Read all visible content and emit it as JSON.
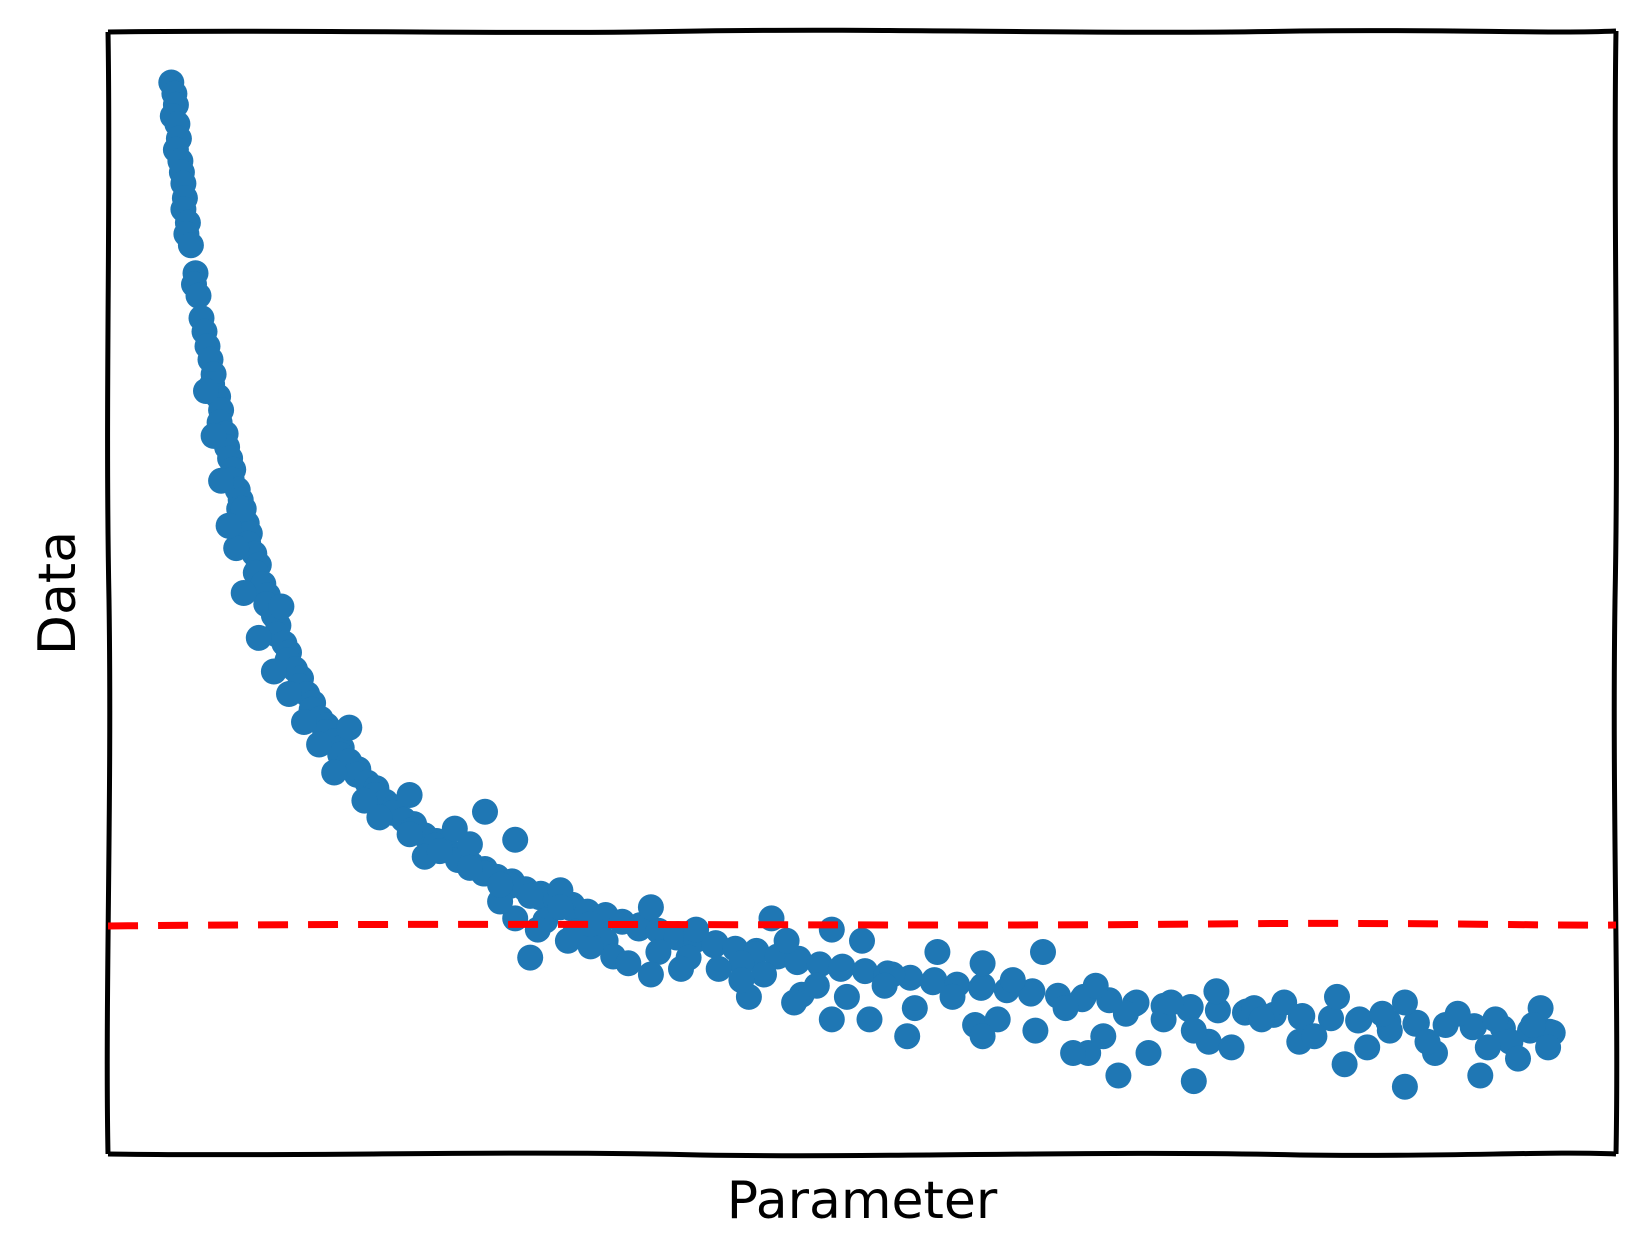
{
  "chart_data": {
    "type": "scatter",
    "title": "",
    "xlabel": "Parameter",
    "ylabel": "Data",
    "xlim": [
      0,
      1
    ],
    "ylim": [
      0,
      1
    ],
    "grid": false,
    "ticks": false,
    "legend": "none",
    "series": [
      {
        "color": "#1f77b4",
        "marker": "circle",
        "points": [
          [
            0.042,
            0.955
          ],
          [
            0.044,
            0.945
          ],
          [
            0.045,
            0.935
          ],
          [
            0.043,
            0.925
          ],
          [
            0.046,
            0.918
          ],
          [
            0.047,
            0.905
          ],
          [
            0.045,
            0.895
          ],
          [
            0.048,
            0.885
          ],
          [
            0.049,
            0.875
          ],
          [
            0.05,
            0.865
          ],
          [
            0.051,
            0.852
          ],
          [
            0.05,
            0.842
          ],
          [
            0.053,
            0.83
          ],
          [
            0.052,
            0.82
          ],
          [
            0.055,
            0.81
          ],
          [
            0.058,
            0.785
          ],
          [
            0.057,
            0.775
          ],
          [
            0.06,
            0.765
          ],
          [
            0.062,
            0.745
          ],
          [
            0.064,
            0.733
          ],
          [
            0.066,
            0.72
          ],
          [
            0.068,
            0.708
          ],
          [
            0.07,
            0.695
          ],
          [
            0.069,
            0.686
          ],
          [
            0.073,
            0.675
          ],
          [
            0.075,
            0.663
          ],
          [
            0.074,
            0.652
          ],
          [
            0.078,
            0.642
          ],
          [
            0.079,
            0.63
          ],
          [
            0.081,
            0.62
          ],
          [
            0.083,
            0.61
          ],
          [
            0.082,
            0.601
          ],
          [
            0.086,
            0.592
          ],
          [
            0.088,
            0.583
          ],
          [
            0.087,
            0.575
          ],
          [
            0.092,
            0.562
          ],
          [
            0.094,
            0.553
          ],
          [
            0.093,
            0.544
          ],
          [
            0.097,
            0.535
          ],
          [
            0.1,
            0.525
          ],
          [
            0.098,
            0.518
          ],
          [
            0.103,
            0.508
          ],
          [
            0.106,
            0.498
          ],
          [
            0.105,
            0.49
          ],
          [
            0.11,
            0.48
          ],
          [
            0.113,
            0.471
          ],
          [
            0.112,
            0.463
          ],
          [
            0.117,
            0.455
          ],
          [
            0.12,
            0.447
          ],
          [
            0.119,
            0.44
          ],
          [
            0.124,
            0.432
          ],
          [
            0.128,
            0.424
          ],
          [
            0.127,
            0.417
          ],
          [
            0.132,
            0.41
          ],
          [
            0.136,
            0.402
          ],
          [
            0.135,
            0.396
          ],
          [
            0.141,
            0.388
          ],
          [
            0.145,
            0.382
          ],
          [
            0.144,
            0.376
          ],
          [
            0.15,
            0.368
          ],
          [
            0.155,
            0.362
          ],
          [
            0.154,
            0.356
          ],
          [
            0.16,
            0.35
          ],
          [
            0.166,
            0.343
          ],
          [
            0.165,
            0.338
          ],
          [
            0.172,
            0.331
          ],
          [
            0.178,
            0.326
          ],
          [
            0.177,
            0.32
          ],
          [
            0.184,
            0.314
          ],
          [
            0.19,
            0.309
          ],
          [
            0.189,
            0.304
          ],
          [
            0.196,
            0.298
          ],
          [
            0.203,
            0.294
          ],
          [
            0.202,
            0.289
          ],
          [
            0.21,
            0.284
          ],
          [
            0.218,
            0.279
          ],
          [
            0.217,
            0.275
          ],
          [
            0.225,
            0.271
          ],
          [
            0.233,
            0.266
          ],
          [
            0.232,
            0.262
          ],
          [
            0.241,
            0.258
          ],
          [
            0.25,
            0.254
          ],
          [
            0.249,
            0.25
          ],
          [
            0.258,
            0.247
          ],
          [
            0.268,
            0.243
          ],
          [
            0.267,
            0.239
          ],
          [
            0.277,
            0.236
          ],
          [
            0.287,
            0.232
          ],
          [
            0.286,
            0.229
          ],
          [
            0.297,
            0.226
          ],
          [
            0.308,
            0.222
          ],
          [
            0.307,
            0.219
          ],
          [
            0.318,
            0.216
          ],
          [
            0.33,
            0.213
          ],
          [
            0.329,
            0.21
          ],
          [
            0.341,
            0.207
          ],
          [
            0.353,
            0.204
          ],
          [
            0.352,
            0.201
          ],
          [
            0.365,
            0.199
          ],
          [
            0.378,
            0.196
          ],
          [
            0.377,
            0.193
          ],
          [
            0.39,
            0.191
          ],
          [
            0.403,
            0.188
          ],
          [
            0.402,
            0.186
          ],
          [
            0.416,
            0.183
          ],
          [
            0.43,
            0.181
          ],
          [
            0.429,
            0.178
          ],
          [
            0.444,
            0.176
          ],
          [
            0.458,
            0.174
          ],
          [
            0.457,
            0.171
          ],
          [
            0.472,
            0.169
          ],
          [
            0.487,
            0.167
          ],
          [
            0.486,
            0.165
          ],
          [
            0.502,
            0.163
          ],
          [
            0.517,
            0.161
          ],
          [
            0.516,
            0.159
          ],
          [
            0.532,
            0.157
          ],
          [
            0.548,
            0.155
          ],
          [
            0.547,
            0.153
          ],
          [
            0.563,
            0.151
          ],
          [
            0.58,
            0.15
          ],
          [
            0.579,
            0.148
          ],
          [
            0.596,
            0.146
          ],
          [
            0.613,
            0.145
          ],
          [
            0.612,
            0.143
          ],
          [
            0.63,
            0.141
          ],
          [
            0.647,
            0.14
          ],
          [
            0.646,
            0.138
          ],
          [
            0.664,
            0.137
          ],
          [
            0.682,
            0.135
          ],
          [
            0.681,
            0.134
          ],
          [
            0.7,
            0.132
          ],
          [
            0.718,
            0.131
          ],
          [
            0.717,
            0.129
          ],
          [
            0.736,
            0.128
          ],
          [
            0.755,
            0.127
          ],
          [
            0.754,
            0.126
          ],
          [
            0.773,
            0.124
          ],
          [
            0.792,
            0.123
          ],
          [
            0.791,
            0.122
          ],
          [
            0.811,
            0.121
          ],
          [
            0.83,
            0.12
          ],
          [
            0.829,
            0.119
          ],
          [
            0.849,
            0.118
          ],
          [
            0.868,
            0.117
          ],
          [
            0.867,
            0.116
          ],
          [
            0.887,
            0.115
          ],
          [
            0.906,
            0.114
          ],
          [
            0.905,
            0.113
          ],
          [
            0.925,
            0.112
          ],
          [
            0.944,
            0.111
          ],
          [
            0.943,
            0.11
          ],
          [
            0.956,
            0.109
          ],
          [
            0.958,
            0.108
          ],
          [
            0.09,
            0.575
          ],
          [
            0.115,
            0.488
          ],
          [
            0.16,
            0.38
          ],
          [
            0.2,
            0.32
          ],
          [
            0.23,
            0.29
          ],
          [
            0.25,
            0.25
          ],
          [
            0.27,
            0.28
          ],
          [
            0.3,
            0.235
          ],
          [
            0.33,
            0.19
          ],
          [
            0.36,
            0.22
          ],
          [
            0.39,
            0.2
          ],
          [
            0.42,
            0.17
          ],
          [
            0.45,
            0.19
          ],
          [
            0.48,
            0.2
          ],
          [
            0.5,
            0.19
          ],
          [
            0.52,
            0.16
          ],
          [
            0.55,
            0.18
          ],
          [
            0.58,
            0.17
          ],
          [
            0.62,
            0.18
          ],
          [
            0.65,
            0.09
          ],
          [
            0.67,
            0.07
          ],
          [
            0.7,
            0.12
          ],
          [
            0.73,
            0.1
          ],
          [
            0.76,
            0.13
          ],
          [
            0.79,
            0.1
          ],
          [
            0.82,
            0.08
          ],
          [
            0.85,
            0.11
          ],
          [
            0.88,
            0.09
          ],
          [
            0.91,
            0.07
          ],
          [
            0.93,
            0.1
          ],
          [
            0.95,
            0.13
          ],
          [
            0.335,
            0.176
          ],
          [
            0.25,
            0.305
          ],
          [
            0.21,
            0.265
          ],
          [
            0.24,
            0.276
          ],
          [
            0.46,
            0.142
          ],
          [
            0.44,
            0.21
          ],
          [
            0.31,
            0.198
          ],
          [
            0.29,
            0.208
          ],
          [
            0.27,
            0.21
          ],
          [
            0.26,
            0.225
          ],
          [
            0.28,
            0.175
          ],
          [
            0.285,
            0.2
          ],
          [
            0.305,
            0.19
          ],
          [
            0.32,
            0.185
          ],
          [
            0.345,
            0.17
          ],
          [
            0.365,
            0.18
          ],
          [
            0.385,
            0.175
          ],
          [
            0.405,
            0.165
          ],
          [
            0.425,
            0.14
          ],
          [
            0.435,
            0.16
          ],
          [
            0.455,
            0.135
          ],
          [
            0.47,
            0.15
          ],
          [
            0.49,
            0.14
          ],
          [
            0.505,
            0.12
          ],
          [
            0.515,
            0.15
          ],
          [
            0.535,
            0.13
          ],
          [
            0.56,
            0.14
          ],
          [
            0.575,
            0.115
          ],
          [
            0.59,
            0.12
          ],
          [
            0.6,
            0.155
          ],
          [
            0.615,
            0.11
          ],
          [
            0.635,
            0.13
          ],
          [
            0.655,
            0.15
          ],
          [
            0.66,
            0.105
          ],
          [
            0.675,
            0.125
          ],
          [
            0.69,
            0.09
          ],
          [
            0.705,
            0.135
          ],
          [
            0.72,
            0.11
          ],
          [
            0.735,
            0.145
          ],
          [
            0.745,
            0.095
          ],
          [
            0.765,
            0.12
          ],
          [
            0.78,
            0.135
          ],
          [
            0.8,
            0.105
          ],
          [
            0.815,
            0.14
          ],
          [
            0.835,
            0.095
          ],
          [
            0.845,
            0.125
          ],
          [
            0.86,
            0.135
          ],
          [
            0.875,
            0.1
          ],
          [
            0.895,
            0.125
          ],
          [
            0.915,
            0.095
          ],
          [
            0.92,
            0.12
          ],
          [
            0.935,
            0.085
          ],
          [
            0.945,
            0.115
          ],
          [
            0.955,
            0.095
          ],
          [
            0.86,
            0.06
          ],
          [
            0.72,
            0.065
          ],
          [
            0.64,
            0.09
          ],
          [
            0.58,
            0.105
          ],
          [
            0.53,
            0.105
          ],
          [
            0.48,
            0.12
          ],
          [
            0.42,
            0.155
          ],
          [
            0.38,
            0.165
          ],
          [
            0.36,
            0.16
          ],
          [
            0.32,
            0.205
          ],
          [
            0.3,
            0.22
          ],
          [
            0.28,
            0.23
          ],
          [
            0.26,
            0.24
          ],
          [
            0.24,
            0.255
          ],
          [
            0.22,
            0.27
          ],
          [
            0.2,
            0.285
          ],
          [
            0.18,
            0.3
          ],
          [
            0.17,
            0.315
          ],
          [
            0.15,
            0.34
          ],
          [
            0.14,
            0.365
          ],
          [
            0.13,
            0.385
          ],
          [
            0.12,
            0.41
          ],
          [
            0.11,
            0.43
          ],
          [
            0.1,
            0.46
          ],
          [
            0.09,
            0.5
          ],
          [
            0.085,
            0.54
          ],
          [
            0.08,
            0.56
          ],
          [
            0.075,
            0.6
          ],
          [
            0.07,
            0.64
          ],
          [
            0.065,
            0.68
          ]
        ]
      }
    ],
    "reference_line": {
      "orientation": "horizontal",
      "y": 0.205,
      "style": "dashed",
      "color": "#ff0000"
    }
  }
}
